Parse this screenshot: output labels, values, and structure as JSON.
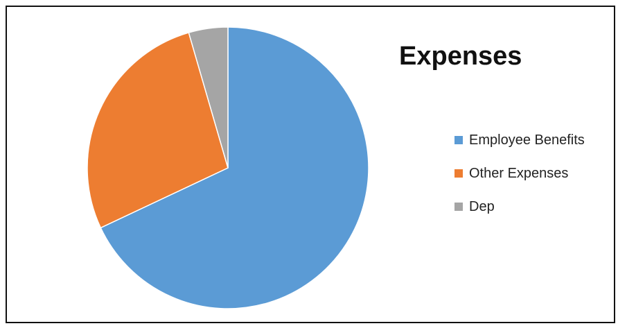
{
  "chart_data": {
    "type": "pie",
    "title": "Expenses",
    "categories": [
      "Employee Benefits",
      "Other Expenses",
      "Dep"
    ],
    "values": [
      68.0,
      27.5,
      4.5
    ],
    "unit": "percent",
    "colors": [
      "#5B9BD5",
      "#ED7D31",
      "#A5A5A5"
    ],
    "start_angle": "12 o'clock",
    "direction": "clockwise",
    "legend_position": "right"
  }
}
